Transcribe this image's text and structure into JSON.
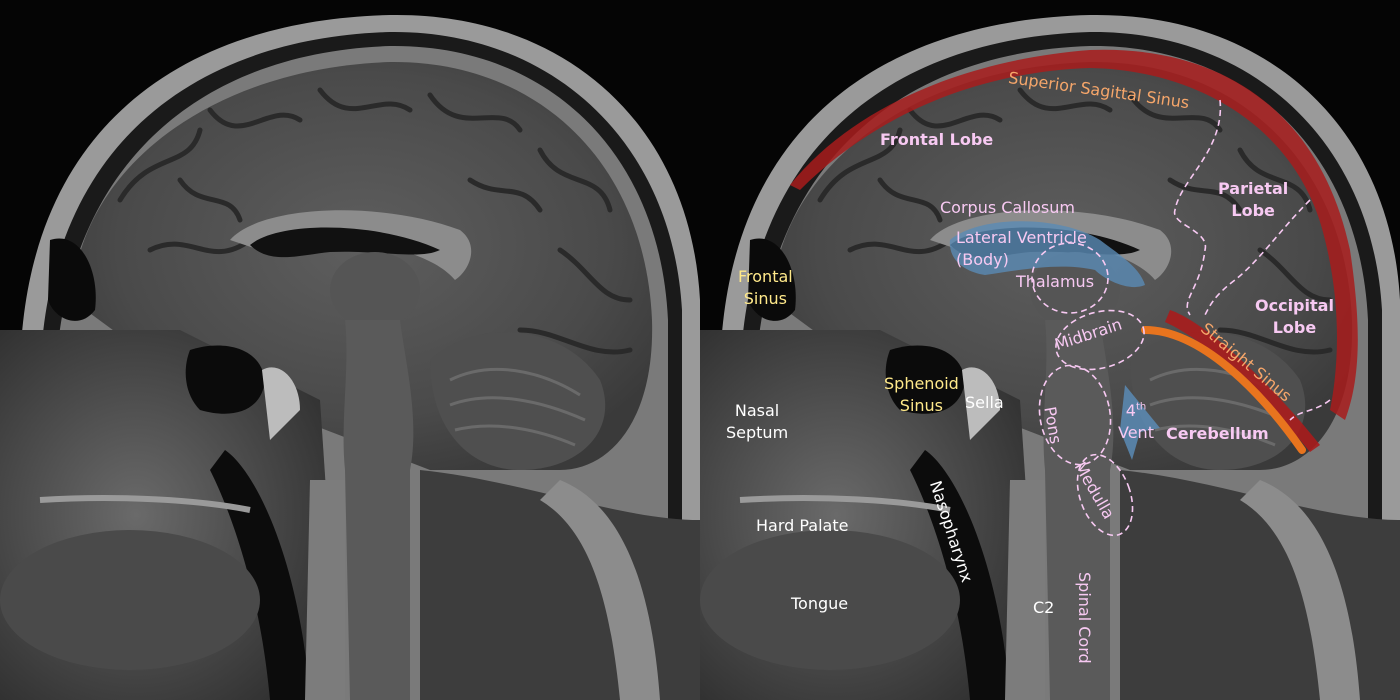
{
  "image": {
    "description_alt": "Sagittal T1 MRI of the head, unlabeled and labeled",
    "colors": {
      "sinus_red": "#a81c1c",
      "straight_sinus_orange": "#e8741e",
      "ventricle_blue": "#5a8bb5",
      "label_pink": "#f7c9f2",
      "label_yellow": "#ffe98a",
      "label_white": "#ffffff"
    }
  },
  "labels": {
    "superior_sagittal_sinus": "Superior Sagittal Sinus",
    "frontal_lobe": "Frontal Lobe",
    "parietal_lobe": [
      "Parietal",
      "Lobe"
    ],
    "occipital_lobe": [
      "Occipital",
      "Lobe"
    ],
    "corpus_callosum": "Corpus Callosum",
    "lateral_ventricle": [
      "Lateral Ventricle",
      "(Body)"
    ],
    "thalamus": "Thalamus",
    "frontal_sinus": [
      "Frontal",
      "Sinus"
    ],
    "midbrain": "Midbrain",
    "straight_sinus": "Straight Sinus",
    "sphenoid_sinus": [
      "Sphenoid",
      "Sinus"
    ],
    "sella": "Sella",
    "nasal_septum": [
      "Nasal",
      "Septum"
    ],
    "pons": "Pons",
    "fourth_vent": {
      "num": "4",
      "sup": "th",
      "word": "Vent"
    },
    "cerebellum": "Cerebellum",
    "medulla": "Medulla",
    "hard_palate": "Hard Palate",
    "nasopharynx": "Nasopharynx",
    "c2": "C2",
    "tongue": "Tongue",
    "spinal_cord": "Spinal Cord"
  }
}
